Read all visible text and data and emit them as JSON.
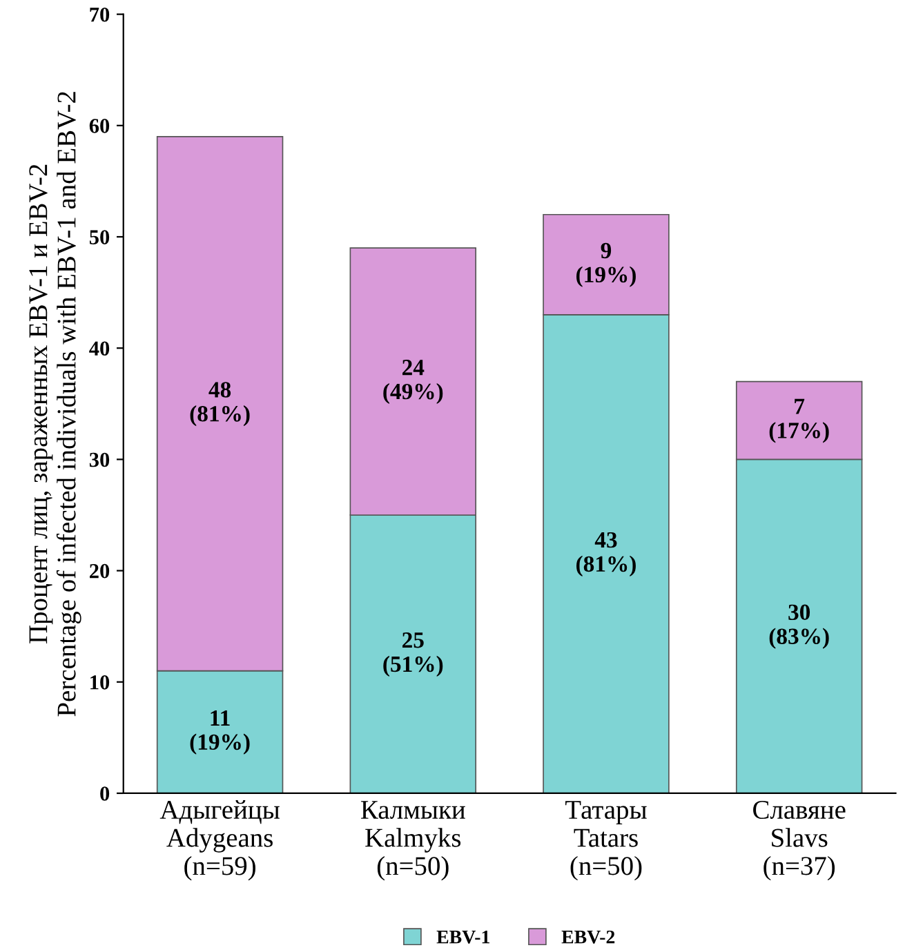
{
  "chart_data": {
    "type": "bar",
    "stacked": true,
    "ylabel": "Процент лиц, зараженных EBV-1 и EBV-2\nPercentage of infected individuals with EBV-1 and EBV-2",
    "categories": [
      "Адыгейцы\nAdygeans\n(n=59)",
      "Калмыки\nKalmyks\n(n=50)",
      "Татары\nTatars\n(n=50)",
      "Славяне\nSlavs\n(n=37)"
    ],
    "series": [
      {
        "name": "EBV-1",
        "color": "#7fd4d4",
        "values": [
          11,
          25,
          43,
          30
        ],
        "value_labels": [
          "11\n(19%)",
          "25\n(51%)",
          "43\n(81%)",
          "30\n(83%)"
        ]
      },
      {
        "name": "EBV-2",
        "color": "#d99ad9",
        "values": [
          48,
          24,
          9,
          7
        ],
        "value_labels": [
          "48\n(81%)",
          "24\n(49%)",
          "9\n(19%)",
          "7\n(17%)"
        ]
      }
    ],
    "ylim": [
      0,
      70
    ],
    "yticks": [
      0,
      10,
      20,
      30,
      40,
      50,
      60,
      70
    ],
    "grid": false,
    "legend": "bottom"
  }
}
